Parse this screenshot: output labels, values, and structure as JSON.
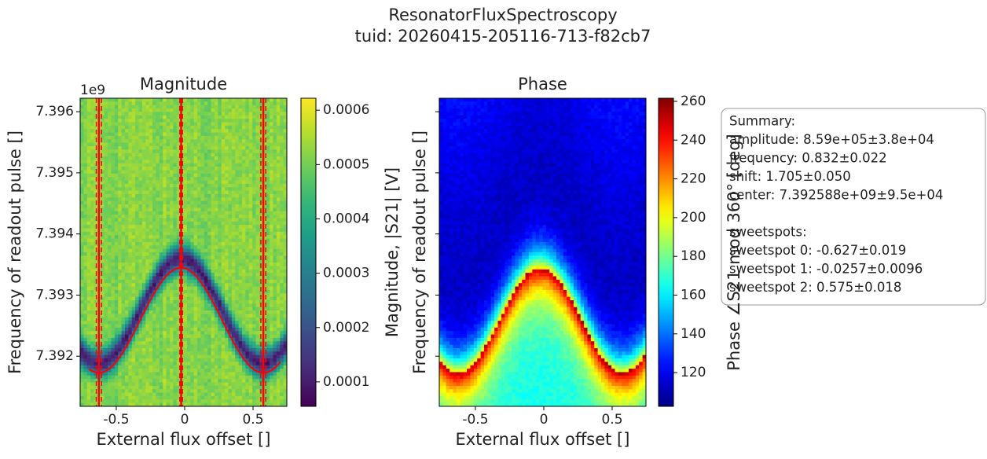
{
  "figure": {
    "title": "ResonatorFluxSpectroscopy",
    "subtitle": "tuid: 20260415-205116-713-f82cb7"
  },
  "chart_data": [
    {
      "type": "heatmap",
      "title": "Magnitude",
      "x_label": "External flux offset []",
      "y_label": "Frequency of readout pulse []",
      "y_offset_label": "1e9",
      "colormap": "viridis",
      "xlim": [
        -0.764,
        0.747
      ],
      "xticks": [
        -0.5,
        0.0,
        0.5
      ],
      "ylim": [
        7391180000,
        7396220000
      ],
      "yticks": [
        {
          "value": 7392000000,
          "label": "7.392"
        },
        {
          "value": 7393000000,
          "label": "7.393"
        },
        {
          "value": 7394000000,
          "label": "7.394"
        },
        {
          "value": 7395000000,
          "label": "7.395"
        },
        {
          "value": 7396000000,
          "label": "7.396"
        }
      ],
      "clim": [
        5.5e-05,
        0.000622
      ],
      "cticks": [
        0.0001,
        0.0002,
        0.0003,
        0.0004,
        0.0005,
        0.0006
      ],
      "colorbar_label": "Magnitude, |S21| [V]",
      "fit_color": "#ff0000"
    },
    {
      "type": "heatmap",
      "title": "Phase",
      "x_label": "External flux offset []",
      "y_label": "Frequency of readout pulse []",
      "colormap": "jet",
      "xlim": [
        -0.764,
        0.747
      ],
      "xticks": [
        -0.5,
        0.0,
        0.5
      ],
      "ylim": [
        7391180000,
        7396220000
      ],
      "yticks": [
        7392000000,
        7393000000,
        7394000000,
        7395000000,
        7396000000
      ],
      "clim": [
        102.6,
        261.6
      ],
      "cticks": [
        120,
        140,
        160,
        180,
        200,
        220,
        240,
        260
      ],
      "colorbar_label": "Phase ∠S21 mod 360° [deg]"
    }
  ],
  "fit": {
    "amplitude": 859000,
    "frequency": 0.832,
    "shift": 1.705,
    "center": 7392588000,
    "sweetspots": [
      {
        "value": -0.627,
        "error": 0.019
      },
      {
        "value": -0.0257,
        "error": 0.0096
      },
      {
        "value": 0.575,
        "error": 0.018
      }
    ]
  },
  "summary": [
    "Summary:",
    "amplitude: 8.59e+05±3.8e+04",
    "frequency: 0.832±0.022",
    "shift: 1.705±0.050",
    "center: 7.392588e+09±9.5e+04",
    "",
    "sweetspots:",
    "sweetspot 0: -0.627±0.019",
    "sweetspot 1: -0.0257±0.0096",
    "sweetspot 2: 0.575±0.018"
  ]
}
